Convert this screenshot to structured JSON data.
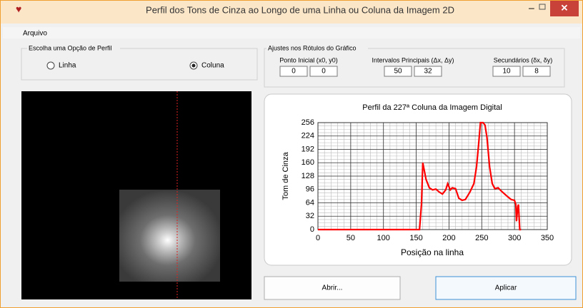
{
  "window": {
    "title": "Perfil dos Tons de Cinza ao Longo de uma Linha ou Coluna da Imagem 2D"
  },
  "menu": {
    "items": [
      "Arquivo"
    ]
  },
  "profile_group": {
    "title": "Escolha uma Opção de Perfil",
    "options": [
      "Linha",
      "Coluna"
    ],
    "selected": "Coluna"
  },
  "labels_group": {
    "title": "Ajustes nos Rótulos do Gráfico",
    "fields": [
      {
        "label": "Ponto Inicial (x0, y0)",
        "values": [
          "0",
          "0"
        ]
      },
      {
        "label": "Intervalos Principais (Δx, Δy)",
        "values": [
          "50",
          "32"
        ]
      },
      {
        "label": "Secundários (δx, δy)",
        "values": [
          "10",
          "8"
        ]
      }
    ]
  },
  "buttons": [
    "Abrir...",
    "Aplicar"
  ],
  "chart_data": {
    "type": "line",
    "title": "Perfil da 227ª Coluna da Imagem Digital",
    "x_label": "Posição na linha",
    "y_label": "Tom de Cinza",
    "color": "#ff0000",
    "x": [
      0,
      50,
      100,
      150,
      155,
      158,
      160,
      165,
      170,
      175,
      180,
      185,
      190,
      195,
      198,
      202,
      205,
      210,
      215,
      220,
      225,
      232,
      238,
      242,
      245,
      248,
      252,
      255,
      258,
      262,
      266,
      270,
      275,
      280,
      285,
      290,
      295,
      300,
      302,
      303,
      305,
      306,
      308,
      310
    ],
    "values": [
      0,
      0,
      0,
      0,
      0,
      60,
      160,
      120,
      100,
      95,
      97,
      90,
      85,
      95,
      110,
      95,
      100,
      98,
      75,
      70,
      72,
      90,
      110,
      150,
      200,
      256,
      256,
      250,
      220,
      150,
      110,
      98,
      100,
      92,
      85,
      78,
      72,
      70,
      60,
      20,
      55,
      60,
      0,
      0
    ],
    "xlim": [
      0,
      350
    ],
    "ylim": [
      0,
      256
    ],
    "xticks": [
      0,
      50,
      100,
      150,
      200,
      250,
      300,
      350
    ],
    "yticks": [
      0,
      32,
      64,
      96,
      128,
      160,
      192,
      224,
      256
    ],
    "grid": true
  }
}
